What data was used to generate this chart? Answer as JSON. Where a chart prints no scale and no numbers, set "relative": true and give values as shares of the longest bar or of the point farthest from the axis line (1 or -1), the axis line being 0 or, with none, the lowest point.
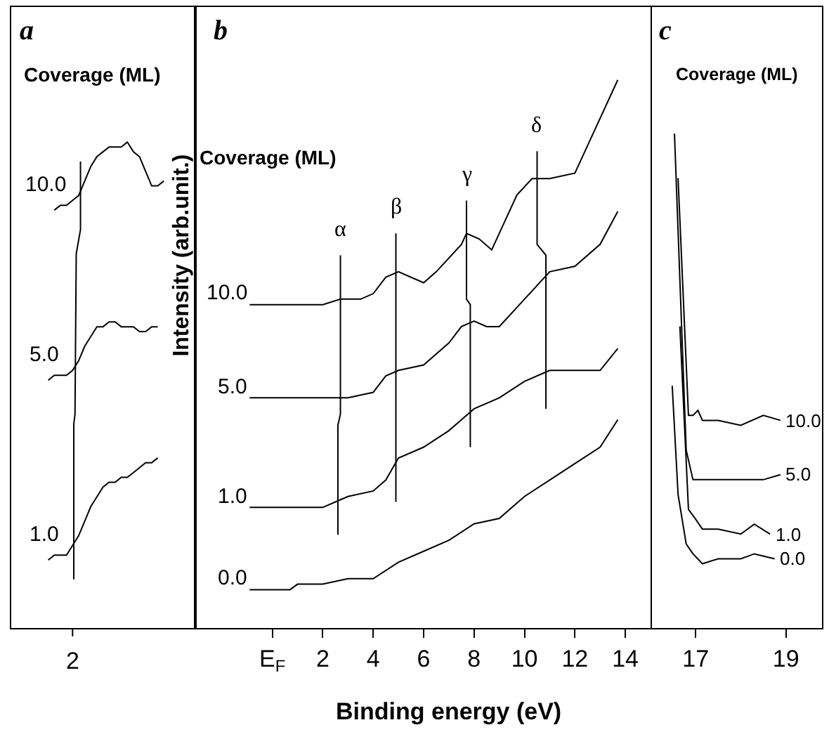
{
  "chart_data": [
    {
      "type": "line",
      "title": "a",
      "legend_title": "Coverage (ML)",
      "relative": true,
      "categories": [
        null,
        null,
        null,
        null,
        null,
        null,
        null,
        null,
        null,
        null,
        null,
        null,
        null,
        null,
        null,
        null,
        null,
        null,
        null,
        null
      ],
      "annotations": [
        "2"
      ],
      "series": [
        {
          "name": "1.0",
          "color": "#000000",
          "values": [
            0.14,
            0.15,
            0.15,
            0.15,
            0.17,
            0.19,
            0.22,
            0.25,
            0.27,
            0.29,
            0.3,
            0.3,
            0.31,
            0.31,
            0.32,
            0.33,
            0.34,
            0.34,
            0.35,
            null
          ]
        },
        {
          "name": "5.0",
          "color": "#000000",
          "values": [
            0.51,
            0.52,
            0.52,
            0.52,
            0.53,
            0.55,
            0.58,
            0.6,
            0.62,
            0.62,
            0.63,
            0.63,
            0.62,
            0.62,
            0.62,
            0.61,
            0.61,
            0.62,
            0.62,
            null
          ]
        },
        {
          "name": "10.0",
          "color": "#000000",
          "values": [
            null,
            0.86,
            0.87,
            0.87,
            0.88,
            0.89,
            0.92,
            0.95,
            0.97,
            0.98,
            0.99,
            0.99,
            0.99,
            1.0,
            0.98,
            0.97,
            0.94,
            0.91,
            0.91,
            0.92
          ]
        }
      ]
    },
    {
      "type": "line",
      "title": "b",
      "legend_title": "Coverage (ML)",
      "xlabel": "Binding energy (eV)",
      "ylabel": "Intensity (arb.unit.)",
      "relative": true,
      "xlim": [
        -3,
        15
      ],
      "xticks": [
        {
          "value": 0,
          "label": "E$_{F}$"
        },
        2,
        4,
        6,
        8,
        10,
        12,
        14
      ],
      "series": [
        {
          "name": "0.0",
          "color": "#000000",
          "x": [
            -0.9,
            0,
            0.7,
            1,
            2,
            3,
            4,
            5,
            6,
            7,
            8,
            9,
            10,
            11,
            12,
            13,
            13.7
          ],
          "values": [
            0.07,
            0.07,
            0.07,
            0.08,
            0.08,
            0.09,
            0.09,
            0.12,
            0.14,
            0.16,
            0.19,
            0.2,
            0.24,
            0.27,
            0.3,
            0.33,
            0.38
          ]
        },
        {
          "name": "1.0",
          "color": "#000000",
          "x": [
            -0.9,
            0,
            1,
            2,
            2.5,
            3,
            4,
            4.5,
            5,
            6,
            7,
            7.5,
            8,
            9,
            10,
            11,
            12,
            13,
            13.7
          ],
          "values": [
            0.22,
            0.22,
            0.22,
            0.22,
            0.23,
            0.24,
            0.25,
            0.27,
            0.31,
            0.33,
            0.36,
            0.38,
            0.4,
            0.42,
            0.45,
            0.47,
            0.47,
            0.47,
            0.51
          ]
        },
        {
          "name": "5.0",
          "color": "#000000",
          "x": [
            -0.9,
            0,
            2,
            3,
            4,
            4.5,
            5,
            6,
            7,
            7.5,
            8,
            8.5,
            9,
            10,
            11,
            12,
            13,
            13.7
          ],
          "values": [
            0.42,
            0.42,
            0.42,
            0.42,
            0.43,
            0.46,
            0.47,
            0.48,
            0.52,
            0.55,
            0.56,
            0.55,
            0.55,
            0.6,
            0.65,
            0.66,
            0.7,
            0.76
          ]
        },
        {
          "name": "10.0",
          "color": "#000000",
          "x": [
            -0.9,
            0,
            2,
            2.7,
            3.5,
            4,
            4.5,
            5,
            6,
            6.5,
            7.5,
            7.7,
            8.2,
            8.7,
            9.2,
            9.7,
            10.3,
            11,
            12,
            12.5,
            13.7
          ],
          "values": [
            0.59,
            0.59,
            0.59,
            0.6,
            0.6,
            0.61,
            0.64,
            0.65,
            0.63,
            0.65,
            0.7,
            0.72,
            0.71,
            0.69,
            0.74,
            0.79,
            0.82,
            0.82,
            0.83,
            0.88,
            1.0
          ]
        },
        {
          "color": "#000000",
          "x": [
            2.7,
            2.7,
            2.6,
            2.6
          ],
          "values": [
            0.68,
            0.39,
            0.37,
            0.17
          ]
        },
        {
          "color": "#000000",
          "x": [
            4.9,
            4.9
          ],
          "values": [
            0.72,
            0.23
          ]
        },
        {
          "color": "#000000",
          "x": [
            7.7,
            7.7,
            7.85,
            7.85
          ],
          "values": [
            0.78,
            0.6,
            0.59,
            0.33
          ]
        },
        {
          "color": "#000000",
          "x": [
            10.5,
            10.5,
            10.85,
            10.85
          ],
          "values": [
            0.87,
            0.7,
            0.68,
            0.4
          ]
        }
      ],
      "annotations": [
        {
          "text": "α",
          "x": 2.7,
          "y": 0.68
        },
        {
          "text": "β",
          "x": 4.9,
          "y": 0.72
        },
        {
          "text": "γ",
          "x": 7.7,
          "y": 0.78
        },
        {
          "text": "δ",
          "x": 10.5,
          "y": 0.87
        }
      ]
    },
    {
      "type": "line",
      "title": "c",
      "legend_title": "Coverage (ML)",
      "relative": true,
      "xlim": [
        16,
        19.8
      ],
      "xticks": [
        17,
        19
      ],
      "series": [
        {
          "name": "0.0",
          "color": "#000000",
          "x": [
            16.48,
            16.61,
            16.79,
            16.94,
            17.15,
            17.5,
            18.0,
            18.3,
            18.75
          ],
          "values": [
            0.49,
            0.27,
            0.17,
            0.15,
            0.13,
            0.14,
            0.14,
            0.15,
            0.14
          ]
        },
        {
          "name": "1.0",
          "color": "#000000",
          "x": [
            16.65,
            16.84,
            17.0,
            17.15,
            17.5,
            18.0,
            18.3,
            18.65
          ],
          "values": [
            0.61,
            0.24,
            0.22,
            0.2,
            0.2,
            0.19,
            0.21,
            0.19
          ]
        },
        {
          "name": "5.0",
          "color": "#000000",
          "x": [
            16.53,
            16.79,
            16.94,
            17.15,
            17.5,
            18.0,
            18.5,
            18.88
          ],
          "values": [
            1.0,
            0.36,
            0.3,
            0.3,
            0.3,
            0.3,
            0.3,
            0.31
          ]
        },
        {
          "name": "10.0",
          "color": "#000000",
          "x": [
            16.61,
            16.84,
            16.94,
            17.05,
            17.15,
            17.5,
            18.0,
            18.5,
            18.88
          ],
          "values": [
            0.91,
            0.43,
            0.43,
            0.44,
            0.42,
            0.42,
            0.41,
            0.43,
            0.42
          ]
        }
      ]
    }
  ]
}
